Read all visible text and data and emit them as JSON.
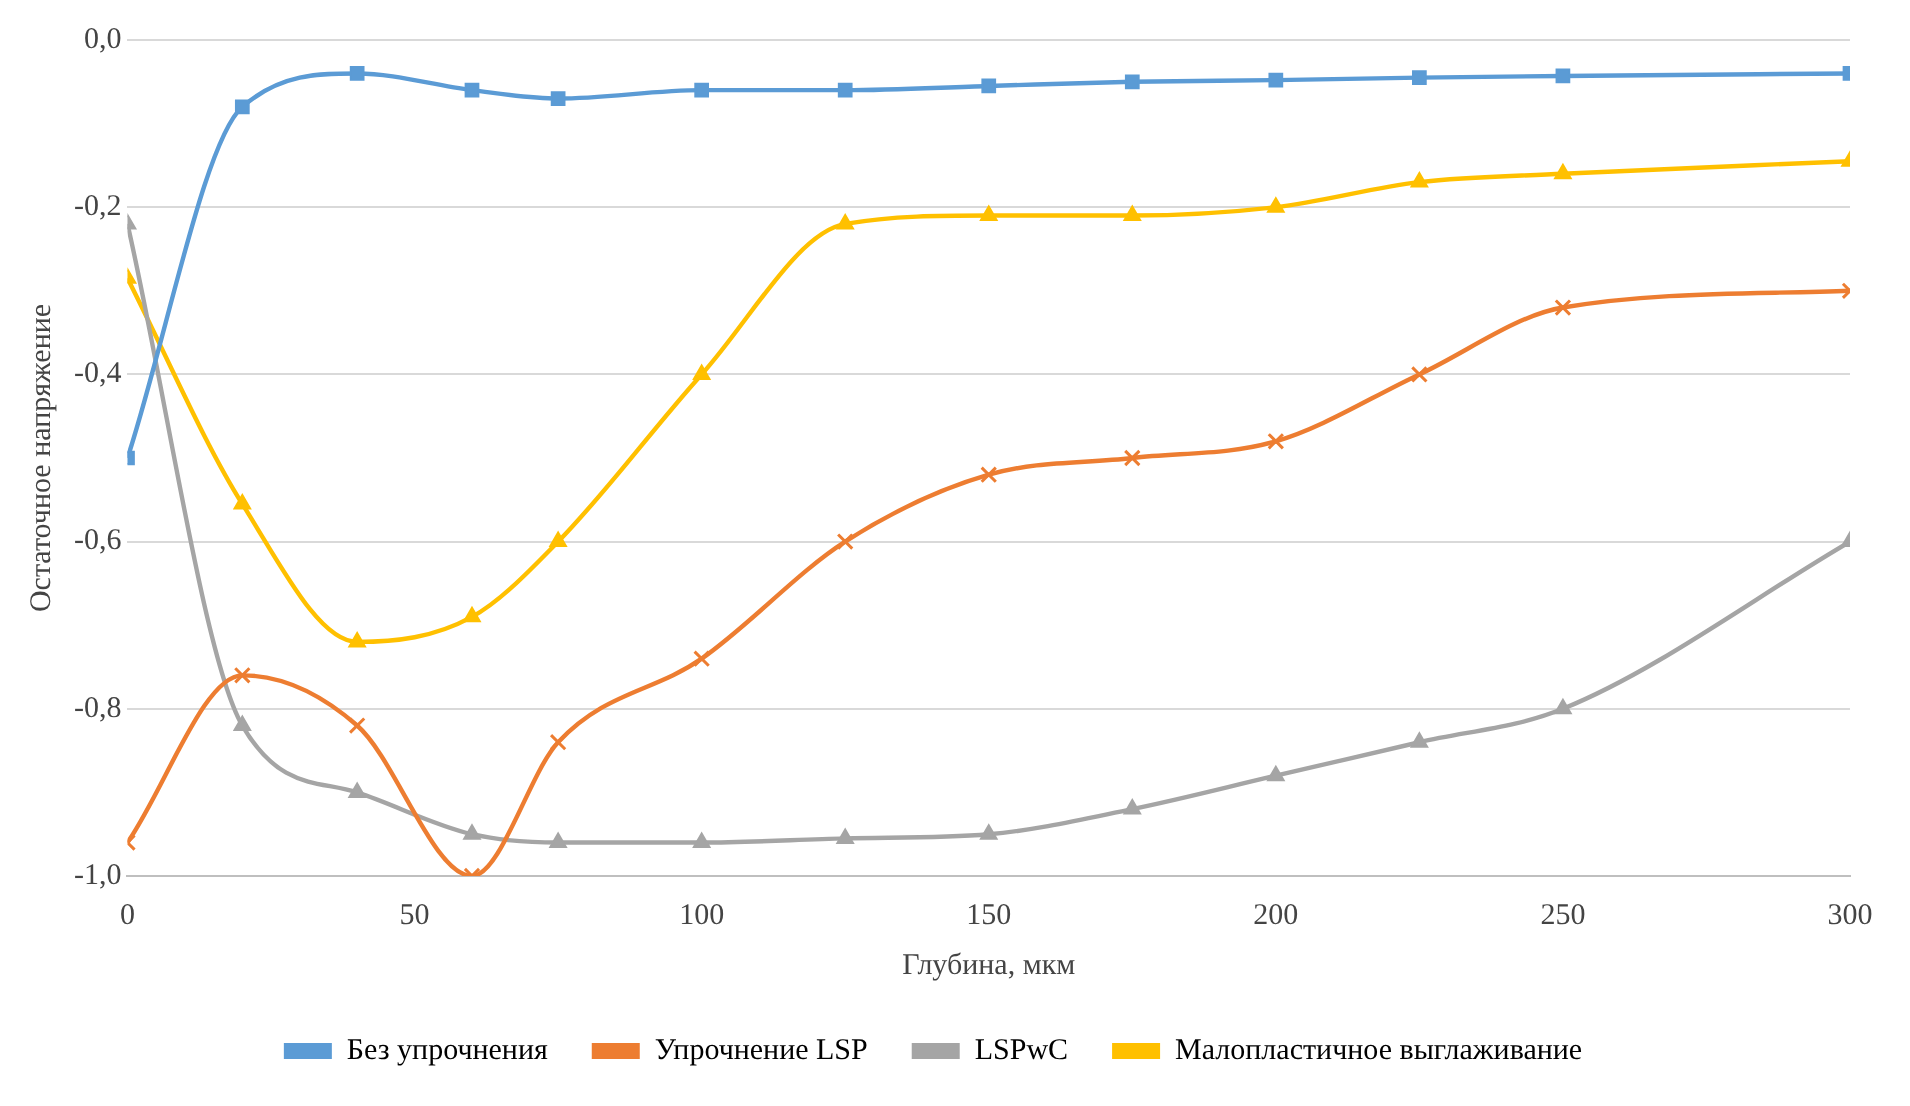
{
  "chart_data": {
    "type": "line",
    "xlabel": "Глубина, мкм",
    "ylabel": "Остаточное напряжение",
    "x": [
      0,
      20,
      40,
      60,
      75,
      100,
      125,
      150,
      175,
      200,
      225,
      250,
      300
    ],
    "series": [
      {
        "name": "Без упрочнения",
        "color": "#5b9bd5",
        "marker": "square",
        "values": [
          -0.5,
          -0.08,
          -0.04,
          -0.06,
          -0.07,
          -0.06,
          -0.06,
          -0.055,
          -0.05,
          -0.048,
          -0.045,
          -0.043,
          -0.04
        ]
      },
      {
        "name": "Упрочнение LSP",
        "color": "#ed7d31",
        "marker": "cross",
        "values": [
          -0.96,
          -0.76,
          -0.82,
          -1.0,
          -0.84,
          -0.74,
          -0.6,
          -0.52,
          -0.5,
          -0.48,
          -0.4,
          -0.32,
          -0.3
        ]
      },
      {
        "name": "LSPwC",
        "color": "#a5a5a5",
        "marker": "triangle",
        "values": [
          -0.22,
          -0.82,
          -0.9,
          -0.95,
          -0.96,
          -0.96,
          -0.955,
          -0.95,
          -0.92,
          -0.88,
          -0.84,
          -0.8,
          -0.6
        ]
      },
      {
        "name": "Малопластичное выглаживание",
        "color": "#ffc000",
        "marker": "triangle",
        "values": [
          -0.285,
          -0.555,
          -0.72,
          -0.69,
          -0.6,
          -0.4,
          -0.22,
          -0.21,
          -0.21,
          -0.2,
          -0.17,
          -0.16,
          -0.145
        ]
      }
    ],
    "xlim": [
      0,
      300
    ],
    "xticks": [
      0,
      50,
      100,
      150,
      200,
      250,
      300
    ],
    "ylim": [
      -1,
      0
    ],
    "yticks": [
      {
        "value": -1,
        "label": "-1,0"
      },
      {
        "value": -0.8,
        "label": "-0,8"
      },
      {
        "value": -0.6,
        "label": "-0,6"
      },
      {
        "value": -0.4,
        "label": "-0,4"
      },
      {
        "value": -0.2,
        "label": "-0,2"
      },
      {
        "value": 0,
        "label": "0,0"
      }
    ],
    "grid": "y",
    "legend": "bottom",
    "line_style": "solid"
  }
}
